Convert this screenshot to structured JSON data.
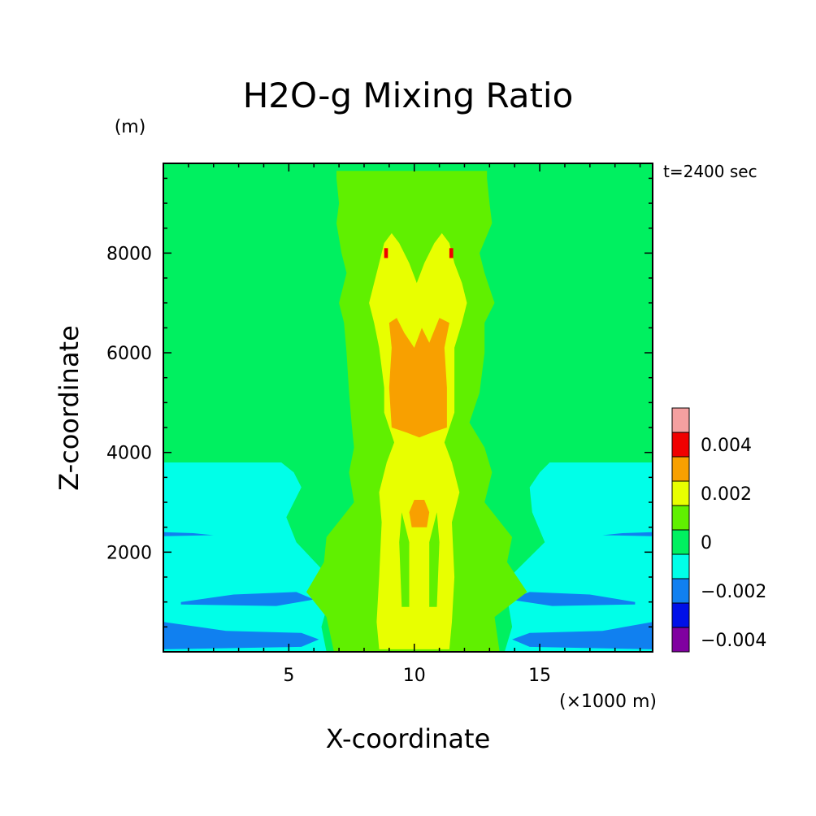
{
  "chart_data": {
    "type": "heatmap",
    "title": "H2O-g Mixing Ratio",
    "time_label": "t=2400 sec",
    "xlabel": "X-coordinate",
    "ylabel": "Z-coordinate",
    "x_unit": "(×1000 m)",
    "y_unit": "(m)",
    "xlim": [
      0,
      19.5
    ],
    "ylim": [
      0,
      9800
    ],
    "x_ticks": [
      {
        "value": 5,
        "label": "5"
      },
      {
        "value": 10,
        "label": "10"
      },
      {
        "value": 15,
        "label": "15"
      }
    ],
    "y_ticks": [
      {
        "value": 2000,
        "label": "2000"
      },
      {
        "value": 4000,
        "label": "4000"
      },
      {
        "value": 6000,
        "label": "6000"
      },
      {
        "value": 8000,
        "label": "8000"
      }
    ],
    "colorbar": {
      "levels": [
        {
          "color": "#f4a0a0"
        },
        {
          "color": "#f00000"
        },
        {
          "color": "#f8a000"
        },
        {
          "color": "#e8ff00"
        },
        {
          "color": "#60f000"
        },
        {
          "color": "#00f060"
        },
        {
          "color": "#00ffe8"
        },
        {
          "color": "#1080f0"
        },
        {
          "color": "#0010e8"
        },
        {
          "color": "#8000a0"
        }
      ],
      "labels": [
        {
          "text": "0.004",
          "level_index": 1
        },
        {
          "text": "0.002",
          "level_index": 3
        },
        {
          "text": "0",
          "level_index": 5
        },
        {
          "text": "−0.002",
          "level_index": 7
        },
        {
          "text": "−0.004",
          "level_index": 9
        }
      ]
    },
    "regions": [
      {
        "name": "background",
        "level": 5,
        "pts": [
          [
            0,
            0
          ],
          [
            19.5,
            0
          ],
          [
            19.5,
            9800
          ],
          [
            0,
            9800
          ]
        ]
      },
      {
        "name": "cyan-layer-left",
        "level": 6,
        "pts": [
          [
            0,
            0
          ],
          [
            6.5,
            0
          ],
          [
            6.3,
            500
          ],
          [
            6.8,
            1400
          ],
          [
            5.3,
            2200
          ],
          [
            4.9,
            2700
          ],
          [
            5.5,
            3300
          ],
          [
            5.2,
            3600
          ],
          [
            4.7,
            3800
          ],
          [
            0,
            3800
          ]
        ]
      },
      {
        "name": "cyan-layer-right",
        "level": 6,
        "pts": [
          [
            19.5,
            0
          ],
          [
            19.5,
            3800
          ],
          [
            15.4,
            3800
          ],
          [
            15,
            3600
          ],
          [
            14.6,
            3300
          ],
          [
            14.7,
            2800
          ],
          [
            15.2,
            2200
          ],
          [
            13.6,
            1400
          ],
          [
            13.9,
            500
          ],
          [
            13.6,
            0
          ]
        ]
      },
      {
        "name": "blue-band-left-1",
        "level": 7,
        "pts": [
          [
            0,
            50
          ],
          [
            5.5,
            100
          ],
          [
            6.2,
            250
          ],
          [
            5.5,
            380
          ],
          [
            2.5,
            420
          ],
          [
            0,
            600
          ]
        ]
      },
      {
        "name": "blue-band-left-2",
        "level": 7,
        "pts": [
          [
            0.7,
            950
          ],
          [
            4.5,
            920
          ],
          [
            6.0,
            1050
          ],
          [
            5.3,
            1200
          ],
          [
            2.8,
            1150
          ],
          [
            0.7,
            1000
          ]
        ]
      },
      {
        "name": "blue-band-left-3",
        "level": 7,
        "pts": [
          [
            0,
            2320
          ],
          [
            2,
            2340
          ],
          [
            1.2,
            2380
          ],
          [
            0,
            2400
          ]
        ]
      },
      {
        "name": "blue-band-right-1",
        "level": 7,
        "pts": [
          [
            19.5,
            50
          ],
          [
            19.5,
            600
          ],
          [
            17.5,
            420
          ],
          [
            14.6,
            380
          ],
          [
            13.9,
            250
          ],
          [
            14.6,
            100
          ]
        ]
      },
      {
        "name": "blue-band-right-2",
        "level": 7,
        "pts": [
          [
            18.8,
            950
          ],
          [
            15.5,
            920
          ],
          [
            13.8,
            1050
          ],
          [
            14.6,
            1200
          ],
          [
            17,
            1150
          ],
          [
            18.8,
            1000
          ]
        ]
      },
      {
        "name": "blue-band-right-3",
        "level": 7,
        "pts": [
          [
            19.5,
            2320
          ],
          [
            17.5,
            2340
          ],
          [
            18.3,
            2380
          ],
          [
            19.5,
            2400
          ]
        ]
      },
      {
        "name": "green-plume-top",
        "level": 4,
        "pts": [
          [
            6.8,
            0
          ],
          [
            13.4,
            0
          ],
          [
            13.2,
            700
          ],
          [
            14.5,
            1200
          ],
          [
            13.7,
            1800
          ],
          [
            13.9,
            2300
          ],
          [
            12.8,
            3000
          ],
          [
            13.1,
            3600
          ],
          [
            12.8,
            4100
          ],
          [
            12.2,
            4600
          ],
          [
            12.6,
            5200
          ],
          [
            12.8,
            6000
          ],
          [
            12.8,
            6600
          ],
          [
            13.2,
            7000
          ],
          [
            12.8,
            7600
          ],
          [
            12.6,
            8000
          ],
          [
            13.1,
            8600
          ],
          [
            13.0,
            9000
          ],
          [
            12.9,
            9500
          ],
          [
            12.9,
            9650
          ],
          [
            6.9,
            9650
          ],
          [
            6.9,
            9500
          ],
          [
            7.0,
            9000
          ],
          [
            6.9,
            8600
          ],
          [
            7.1,
            8000
          ],
          [
            7.3,
            7600
          ],
          [
            7.0,
            7000
          ],
          [
            7.2,
            6600
          ],
          [
            7.3,
            6000
          ],
          [
            7.4,
            5200
          ],
          [
            7.5,
            4600
          ],
          [
            7.6,
            4100
          ],
          [
            7.4,
            3600
          ],
          [
            7.6,
            3000
          ],
          [
            6.5,
            2300
          ],
          [
            6.4,
            1800
          ],
          [
            5.7,
            1200
          ],
          [
            6.5,
            700
          ]
        ]
      },
      {
        "name": "yellow-core",
        "level": 3,
        "pts": [
          [
            8.6,
            50
          ],
          [
            11.4,
            50
          ],
          [
            11.5,
            600
          ],
          [
            11.6,
            1500
          ],
          [
            11.5,
            2600
          ],
          [
            11.8,
            3200
          ],
          [
            11.5,
            3800
          ],
          [
            11.2,
            4200
          ],
          [
            11.6,
            4800
          ],
          [
            11.6,
            5300
          ],
          [
            11.6,
            6100
          ],
          [
            11.9,
            6600
          ],
          [
            12.1,
            7000
          ],
          [
            11.9,
            7400
          ],
          [
            11.6,
            7800
          ],
          [
            11.4,
            8200
          ],
          [
            11.1,
            8400
          ],
          [
            10.8,
            8200
          ],
          [
            10.4,
            7800
          ],
          [
            10.1,
            7400
          ],
          [
            9.8,
            7800
          ],
          [
            9.4,
            8200
          ],
          [
            9.1,
            8400
          ],
          [
            8.8,
            8200
          ],
          [
            8.6,
            7800
          ],
          [
            8.4,
            7400
          ],
          [
            8.2,
            7000
          ],
          [
            8.4,
            6600
          ],
          [
            8.6,
            6100
          ],
          [
            8.8,
            5300
          ],
          [
            8.8,
            4800
          ],
          [
            9.2,
            4200
          ],
          [
            8.9,
            3800
          ],
          [
            8.6,
            3200
          ],
          [
            8.7,
            2600
          ],
          [
            8.6,
            1500
          ],
          [
            8.5,
            600
          ]
        ]
      },
      {
        "name": "orange-core",
        "level": 2,
        "pts": [
          [
            9.1,
            4500
          ],
          [
            9.7,
            4400
          ],
          [
            10.2,
            4300
          ],
          [
            10.7,
            4400
          ],
          [
            11.3,
            4500
          ],
          [
            11.3,
            5300
          ],
          [
            11.2,
            6100
          ],
          [
            11.4,
            6600
          ],
          [
            11.0,
            6700
          ],
          [
            10.6,
            6200
          ],
          [
            10.3,
            6500
          ],
          [
            10.0,
            6100
          ],
          [
            9.6,
            6400
          ],
          [
            9.3,
            6700
          ],
          [
            9.0,
            6600
          ],
          [
            9.1,
            6100
          ],
          [
            9.0,
            5300
          ]
        ]
      },
      {
        "name": "green-gap-left",
        "level": 4,
        "pts": [
          [
            9.5,
            900
          ],
          [
            9.8,
            900
          ],
          [
            9.8,
            2200
          ],
          [
            9.5,
            2800
          ],
          [
            9.4,
            2200
          ]
        ]
      },
      {
        "name": "green-gap-right",
        "level": 4,
        "pts": [
          [
            10.6,
            900
          ],
          [
            10.9,
            900
          ],
          [
            11.0,
            2200
          ],
          [
            10.9,
            2800
          ],
          [
            10.6,
            2200
          ]
        ]
      },
      {
        "name": "red-spot",
        "level": 1,
        "pts": [
          [
            10.1,
            2600
          ],
          [
            10.3,
            2600
          ],
          [
            10.4,
            2800
          ],
          [
            10.3,
            2950
          ],
          [
            10.1,
            2950
          ],
          [
            10.0,
            2800
          ]
        ]
      },
      {
        "name": "orange-spot",
        "level": 2,
        "pts": [
          [
            9.9,
            2500
          ],
          [
            10.5,
            2500
          ],
          [
            10.6,
            2800
          ],
          [
            10.4,
            3050
          ],
          [
            10.0,
            3050
          ],
          [
            9.8,
            2800
          ]
        ]
      },
      {
        "name": "red-spot-left",
        "level": 1,
        "pts": [
          [
            8.8,
            7900
          ],
          [
            8.95,
            7900
          ],
          [
            8.95,
            8100
          ],
          [
            8.8,
            8100
          ]
        ]
      },
      {
        "name": "red-spot-right",
        "level": 1,
        "pts": [
          [
            11.4,
            7900
          ],
          [
            11.55,
            7900
          ],
          [
            11.55,
            8100
          ],
          [
            11.4,
            8100
          ]
        ]
      }
    ]
  }
}
